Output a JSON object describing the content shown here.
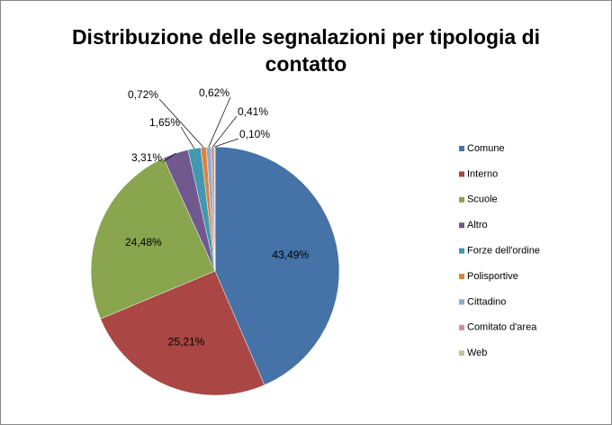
{
  "chart_data": {
    "type": "pie",
    "title": "Distribuzione delle segnalazioni per tipologia di contatto",
    "categories": [
      "Comune",
      "Interno",
      "Scuole",
      "Altro",
      "Forze dell'ordine",
      "Polisportive",
      "Cittadino",
      "Comitato d'area",
      "Web"
    ],
    "values": [
      43.49,
      25.21,
      24.48,
      3.31,
      1.65,
      0.72,
      0.62,
      0.41,
      0.1
    ],
    "value_labels": [
      "43,49%",
      "25,21%",
      "24,48%",
      "3,31%",
      "1,65%",
      "0,72%",
      "0,62%",
      "0,41%",
      "0,10%"
    ],
    "colors": [
      "#4572a7",
      "#aa4643",
      "#89a54e",
      "#71588f",
      "#4198af",
      "#db843d",
      "#93a9cf",
      "#d19392",
      "#b9cd96"
    ],
    "legend": "right"
  }
}
